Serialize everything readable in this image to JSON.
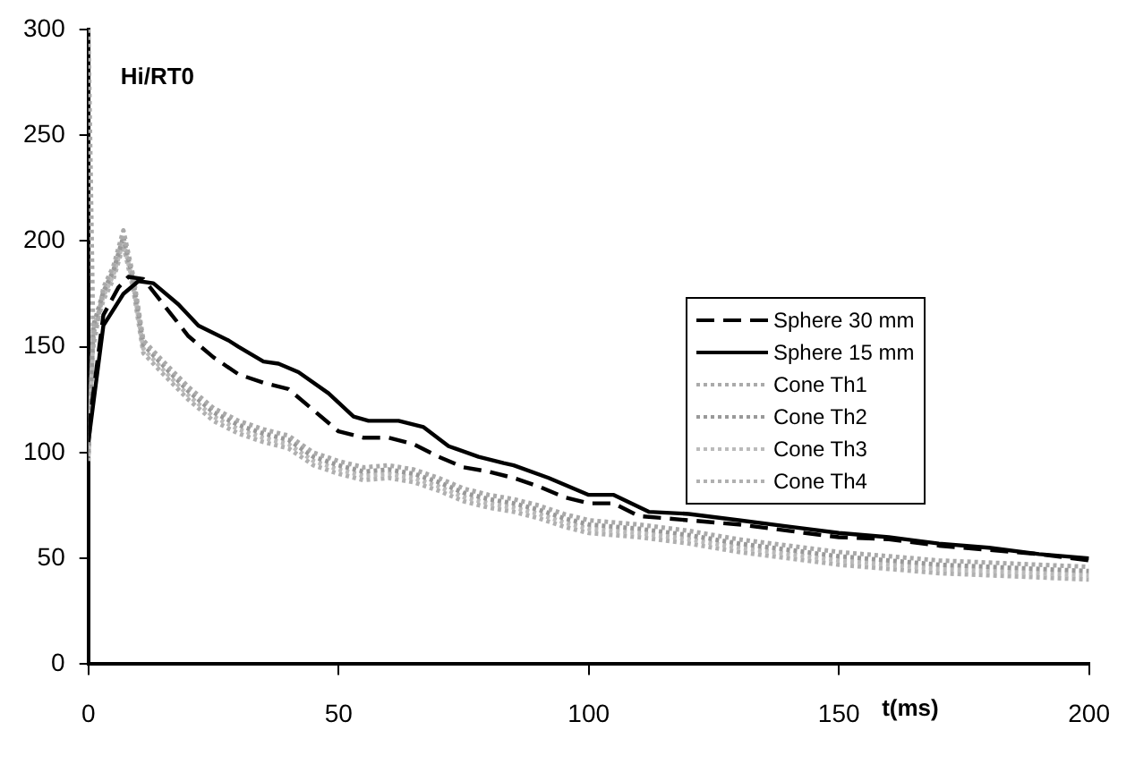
{
  "chart_data": {
    "type": "line",
    "ylabel": "Hi/RT0",
    "xlabel": "t(ms)",
    "xlim": [
      0,
      200
    ],
    "ylim": [
      0,
      300
    ],
    "xticks": [
      0,
      50,
      100,
      150,
      200
    ],
    "yticks": [
      0,
      50,
      100,
      150,
      200,
      250,
      300
    ],
    "grid": false,
    "legend": "right",
    "marker": "none",
    "series": [
      {
        "name": "Sphere 30 mm",
        "color": "#000000",
        "line_style": "dashed",
        "x": [
          0,
          3,
          6,
          8,
          11,
          15,
          20,
          25,
          30,
          35,
          40,
          45,
          50,
          55,
          60,
          65,
          70,
          75,
          80,
          85,
          90,
          95,
          100,
          105,
          110,
          120,
          130,
          140,
          150,
          160,
          170,
          180,
          190,
          200
        ],
        "values": [
          110,
          165,
          178,
          183,
          182,
          170,
          155,
          145,
          137,
          133,
          130,
          120,
          110,
          107,
          107,
          104,
          98,
          93,
          91,
          88,
          84,
          79,
          76,
          76,
          70,
          68,
          66,
          63,
          60,
          59,
          56,
          54,
          52,
          49
        ]
      },
      {
        "name": "Sphere 15 mm",
        "color": "#000000",
        "line_style": "solid",
        "x": [
          0,
          3,
          7,
          10,
          13,
          18,
          22,
          28,
          30,
          35,
          38,
          42,
          48,
          53,
          56,
          62,
          67,
          72,
          78,
          83,
          85,
          92,
          100,
          105,
          112,
          120,
          130,
          140,
          150,
          160,
          170,
          180,
          190,
          200
        ],
        "values": [
          105,
          160,
          175,
          181,
          180,
          170,
          160,
          153,
          150,
          143,
          142,
          138,
          128,
          117,
          115,
          115,
          112,
          103,
          98,
          95,
          94,
          88,
          80,
          80,
          72,
          71,
          68,
          65,
          62,
          60,
          57,
          55,
          52,
          50
        ]
      },
      {
        "name": "Cone Th1",
        "color": "#aaaaaa",
        "line_style": "dotted",
        "x": [
          0,
          1,
          3,
          5,
          7,
          9,
          11,
          15,
          20,
          25,
          30,
          35,
          40,
          45,
          50,
          55,
          60,
          65,
          70,
          75,
          80,
          85,
          90,
          95,
          100,
          110,
          120,
          130,
          140,
          150,
          160,
          170,
          180,
          190,
          200
        ],
        "values": [
          300,
          150,
          178,
          188,
          205,
          183,
          153,
          143,
          131,
          121,
          115,
          111,
          108,
          100,
          96,
          93,
          94,
          92,
          88,
          83,
          80,
          78,
          75,
          71,
          68,
          66,
          63,
          59,
          56,
          53,
          51,
          49,
          48,
          47,
          46
        ]
      },
      {
        "name": "Cone Th2",
        "color": "#999999",
        "line_style": "dotted",
        "x": [
          0,
          1,
          3,
          5,
          7,
          9,
          11,
          15,
          20,
          25,
          30,
          35,
          40,
          45,
          50,
          55,
          60,
          65,
          70,
          75,
          80,
          85,
          90,
          95,
          100,
          110,
          120,
          130,
          140,
          150,
          160,
          170,
          180,
          190,
          200
        ],
        "values": [
          100,
          160,
          176,
          186,
          202,
          181,
          151,
          141,
          129,
          119,
          113,
          109,
          106,
          98,
          94,
          91,
          92,
          90,
          86,
          81,
          78,
          76,
          73,
          69,
          66,
          64,
          61,
          57,
          54,
          51,
          49,
          47,
          46,
          45,
          44
        ]
      },
      {
        "name": "Cone Th3",
        "color": "#bbbbbb",
        "line_style": "dotted",
        "x": [
          0,
          1,
          3,
          5,
          7,
          9,
          11,
          15,
          20,
          25,
          30,
          35,
          40,
          45,
          50,
          55,
          60,
          65,
          70,
          75,
          80,
          85,
          90,
          95,
          100,
          110,
          120,
          130,
          140,
          150,
          160,
          170,
          180,
          190,
          200
        ],
        "values": [
          98,
          158,
          174,
          184,
          200,
          179,
          149,
          139,
          127,
          117,
          111,
          107,
          104,
          96,
          92,
          89,
          90,
          88,
          84,
          79,
          76,
          74,
          71,
          67,
          64,
          62,
          59,
          55,
          52,
          49,
          47,
          45,
          44,
          43,
          42
        ]
      },
      {
        "name": "Cone Th4",
        "color": "#b0b0b0",
        "line_style": "dotted",
        "x": [
          0,
          1,
          3,
          5,
          7,
          9,
          11,
          15,
          20,
          25,
          30,
          35,
          40,
          45,
          50,
          55,
          60,
          65,
          70,
          75,
          80,
          85,
          90,
          95,
          100,
          110,
          120,
          130,
          140,
          150,
          160,
          170,
          180,
          190,
          200
        ],
        "values": [
          96,
          156,
          172,
          182,
          198,
          177,
          147,
          137,
          125,
          115,
          109,
          105,
          102,
          94,
          90,
          87,
          88,
          86,
          82,
          77,
          74,
          72,
          69,
          65,
          62,
          60,
          57,
          53,
          50,
          47,
          45,
          43,
          42,
          41,
          40
        ]
      }
    ]
  }
}
